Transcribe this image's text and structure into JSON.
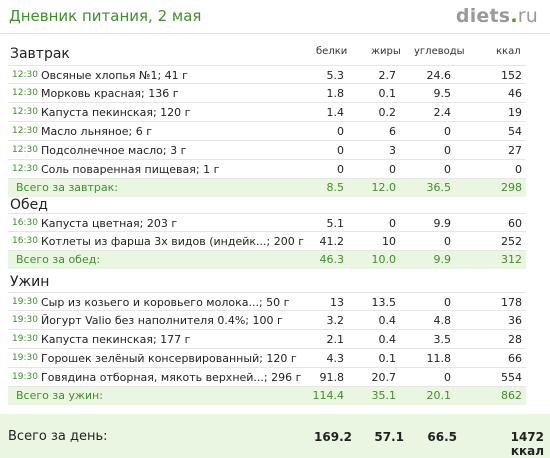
{
  "header": {
    "title": "Дневник питания, 2 мая",
    "logo_main": "diets",
    "logo_dot": ".",
    "logo_tld": "ru"
  },
  "columns": {
    "protein": "белки",
    "fat": "жиры",
    "carbs": "углеводы",
    "kcal": "ккал"
  },
  "breakfast": {
    "title": "Завтрак",
    "items": [
      {
        "time": "12:30",
        "name": "Овсяные хлопья №1; 41 г",
        "p": "5.3",
        "f": "2.7",
        "c": "24.6",
        "k": "152"
      },
      {
        "time": "12:30",
        "name": "Морковь красная; 136 г",
        "p": "1.8",
        "f": "0.1",
        "c": "9.5",
        "k": "46"
      },
      {
        "time": "12:30",
        "name": "Капуста пекинская; 120 г",
        "p": "1.4",
        "f": "0.2",
        "c": "2.4",
        "k": "19"
      },
      {
        "time": "12:30",
        "name": "Масло льняное; 6 г",
        "p": "0",
        "f": "6",
        "c": "0",
        "k": "54"
      },
      {
        "time": "12:30",
        "name": "Подсолнечное масло; 3 г",
        "p": "0",
        "f": "3",
        "c": "0",
        "k": "27"
      },
      {
        "time": "12:30",
        "name": "Соль поваренная пищевая; 1 г",
        "p": "0",
        "f": "0",
        "c": "0",
        "k": "0"
      }
    ],
    "total": {
      "label": "Всего за завтрак:",
      "p": "8.5",
      "f": "12.0",
      "c": "36.5",
      "k": "298"
    }
  },
  "lunch": {
    "title": "Обед",
    "items": [
      {
        "time": "16:30",
        "name": "Капуста цветная; 203 г",
        "p": "5.1",
        "f": "0",
        "c": "9.9",
        "k": "60"
      },
      {
        "time": "16:30",
        "name": "Котлеты из фарша 3х видов (индейк...; 200 г",
        "p": "41.2",
        "f": "10",
        "c": "0",
        "k": "252"
      }
    ],
    "total": {
      "label": "Всего за обед:",
      "p": "46.3",
      "f": "10.0",
      "c": "9.9",
      "k": "312"
    }
  },
  "dinner": {
    "title": "Ужин",
    "items": [
      {
        "time": "19:30",
        "name": "Сыр из козьего и коровьего молока...; 50 г",
        "p": "13",
        "f": "13.5",
        "c": "0",
        "k": "178"
      },
      {
        "time": "19:30",
        "name": "Йогурт Valio без наполнителя 0.4%; 100 г",
        "p": "3.2",
        "f": "0.4",
        "c": "4.8",
        "k": "36"
      },
      {
        "time": "19:30",
        "name": "Капуста пекинская; 177 г",
        "p": "2.1",
        "f": "0.4",
        "c": "3.5",
        "k": "28"
      },
      {
        "time": "19:30",
        "name": "Горошек зелёный консервированный; 120 г",
        "p": "4.3",
        "f": "0.1",
        "c": "11.8",
        "k": "66"
      },
      {
        "time": "19:30",
        "name": "Говядина отборная, мякоть верхней...; 296 г",
        "p": "91.8",
        "f": "20.7",
        "c": "0",
        "k": "554"
      }
    ],
    "total": {
      "label": "Всего за ужин:",
      "p": "114.4",
      "f": "35.1",
      "c": "20.1",
      "k": "862"
    }
  },
  "day_total": {
    "label": "Всего за день:",
    "p": "169.2",
    "f": "57.1",
    "c": "66.5",
    "k": "1472 ккал"
  }
}
